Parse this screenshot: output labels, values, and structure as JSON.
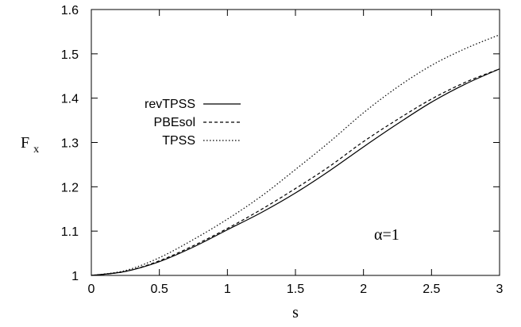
{
  "chart_data": {
    "type": "line",
    "title": "",
    "xlabel": "s",
    "ylabel_main": "F",
    "ylabel_sub": "x",
    "xlim": [
      0,
      3
    ],
    "ylim": [
      1,
      1.6
    ],
    "xticks": [
      0,
      0.5,
      1,
      1.5,
      2,
      2.5,
      3
    ],
    "xtick_labels": [
      "0",
      "0.5",
      "1",
      "1.5",
      "2",
      "2.5",
      "3"
    ],
    "yticks": [
      1,
      1.1,
      1.2,
      1.3,
      1.4,
      1.5,
      1.6
    ],
    "ytick_labels": [
      "1",
      "1.1",
      "1.2",
      "1.3",
      "1.4",
      "1.5",
      "1.6"
    ],
    "grid": false,
    "legend_position": "middle-left",
    "annotation": "α=1",
    "series": [
      {
        "name": "revTPSS",
        "style": "solid",
        "x": [
          0,
          0.25,
          0.5,
          0.75,
          1.0,
          1.25,
          1.5,
          1.75,
          2.0,
          2.25,
          2.5,
          2.75,
          3.0
        ],
        "y": [
          1.0,
          1.009,
          1.031,
          1.064,
          1.103,
          1.142,
          1.186,
          1.236,
          1.29,
          1.342,
          1.391,
          1.432,
          1.466
        ]
      },
      {
        "name": "PBEsol",
        "style": "dashed",
        "x": [
          0,
          0.25,
          0.5,
          0.75,
          1.0,
          1.25,
          1.5,
          1.75,
          2.0,
          2.25,
          2.5,
          2.75,
          3.0
        ],
        "y": [
          1.0,
          1.009,
          1.033,
          1.067,
          1.106,
          1.149,
          1.196,
          1.246,
          1.302,
          1.352,
          1.398,
          1.436,
          1.466
        ]
      },
      {
        "name": "TPSS",
        "style": "dotted",
        "x": [
          0,
          0.25,
          0.5,
          0.75,
          1.0,
          1.25,
          1.5,
          1.75,
          2.0,
          2.25,
          2.5,
          2.75,
          3.0
        ],
        "y": [
          1.0,
          1.011,
          1.04,
          1.081,
          1.127,
          1.179,
          1.239,
          1.301,
          1.367,
          1.425,
          1.474,
          1.512,
          1.543
        ]
      }
    ]
  }
}
